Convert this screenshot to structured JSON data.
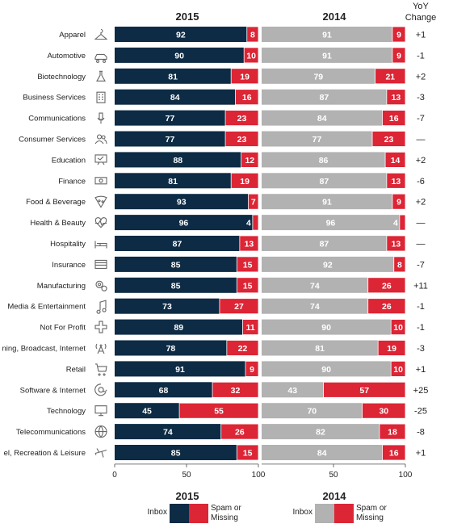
{
  "chart_data": {
    "type": "bar",
    "stacked": true,
    "orientation": "horizontal",
    "panel_titles": [
      "2015",
      "2014"
    ],
    "yoy_header": [
      "YoY",
      "Change"
    ],
    "categories": [
      "Apparel",
      "Automotive",
      "Biotechnology",
      "Business Services",
      "Communications",
      "Consumer Services",
      "Education",
      "Finance",
      "Food & Beverage",
      "Health & Beauty",
      "Hospitality",
      "Insurance",
      "Manufacturing",
      "Media & Entertainment",
      "Not For Profit",
      "ning, Broadcast, Internet",
      "Retail",
      "Software & Internet",
      "Technology",
      "Telecommunications",
      "el, Recreation & Leisure"
    ],
    "icons": [
      "hanger-icon",
      "car-icon",
      "flask-icon",
      "building-icon",
      "microphone-icon",
      "people-icon",
      "chalkboard-icon",
      "banknote-icon",
      "pizza-icon",
      "heart-pulse-icon",
      "bed-icon",
      "card-icon",
      "gears-icon",
      "music-note-icon",
      "cross-icon",
      "antenna-icon",
      "cart-icon",
      "at-sign-icon",
      "monitor-icon",
      "globe-icon",
      "airplane-icon"
    ],
    "series_2015": [
      {
        "name": "Inbox",
        "color": "#0d2b45",
        "values": [
          92,
          90,
          81,
          84,
          77,
          77,
          88,
          81,
          93,
          96,
          87,
          85,
          85,
          73,
          89,
          78,
          91,
          68,
          45,
          74,
          85
        ]
      },
      {
        "name": "Spam or Missing",
        "color": "#dc2535",
        "values": [
          8,
          10,
          19,
          16,
          23,
          23,
          12,
          19,
          7,
          4,
          13,
          15,
          15,
          27,
          11,
          22,
          9,
          32,
          55,
          26,
          15
        ]
      }
    ],
    "series_2014": [
      {
        "name": "Inbox",
        "color": "#b2b2b2",
        "values": [
          91,
          91,
          79,
          87,
          84,
          77,
          86,
          87,
          91,
          96,
          87,
          92,
          74,
          74,
          90,
          81,
          90,
          43,
          70,
          82,
          84
        ]
      },
      {
        "name": "Spam or Missing",
        "color": "#dc2535",
        "values": [
          9,
          9,
          21,
          13,
          16,
          23,
          14,
          13,
          9,
          4,
          13,
          8,
          26,
          26,
          10,
          19,
          10,
          57,
          30,
          18,
          16
        ]
      }
    ],
    "yoy_change": [
      "+1",
      "-1",
      "+2",
      "-3",
      "-7",
      "—",
      "+2",
      "-6",
      "+2",
      "—",
      "—",
      "-7",
      "+11",
      "-1",
      "-1",
      "-3",
      "+1",
      "+25",
      "-25",
      "-8",
      "+1"
    ],
    "xlim": [
      0,
      100
    ],
    "ticks_2015": [
      "0",
      "50",
      "100"
    ],
    "ticks_2014": [
      "50",
      "100"
    ],
    "legend": {
      "title_2015": "2015",
      "title_2014": "2014",
      "inbox_label": "Inbox",
      "spam_label_line1": "Spam or",
      "spam_label_line2": "Missing"
    }
  }
}
